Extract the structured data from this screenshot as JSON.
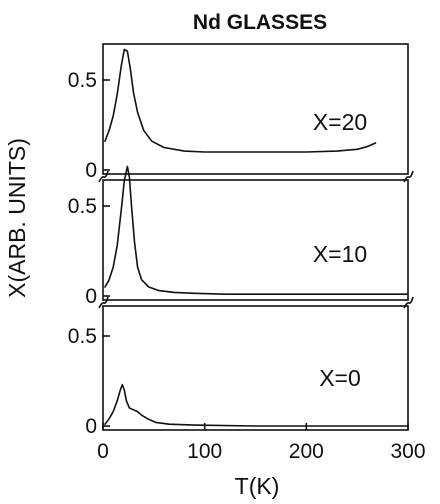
{
  "chart_data": {
    "type": "line",
    "title": "Nd GLASSES",
    "xlabel": "T(K)",
    "ylabel": "X(ARB. UNITS)",
    "xlim": [
      0,
      300
    ],
    "x_ticks": [
      "0",
      "100",
      "200",
      "300"
    ],
    "grid": false,
    "legend": "none",
    "line_color": "#111111",
    "panels": [
      {
        "label": "X=20",
        "ylim": [
          0,
          1.0
        ],
        "y_ticks": [
          "0",
          "0.5"
        ],
        "x": [
          2,
          6,
          10,
          14,
          18,
          21,
          24,
          27,
          30,
          34,
          40,
          48,
          60,
          80,
          100,
          150,
          200,
          230,
          250,
          260,
          268
        ],
        "y": [
          0.16,
          0.22,
          0.3,
          0.42,
          0.58,
          0.67,
          0.66,
          0.56,
          0.43,
          0.32,
          0.22,
          0.16,
          0.125,
          0.105,
          0.1,
          0.1,
          0.1,
          0.105,
          0.115,
          0.13,
          0.15
        ]
      },
      {
        "label": "X=10",
        "ylim": [
          0,
          1.0
        ],
        "y_ticks": [
          "0",
          "0.5"
        ],
        "x": [
          2,
          6,
          10,
          14,
          18,
          21,
          24,
          26,
          28,
          31,
          34,
          38,
          45,
          55,
          70,
          90,
          120,
          200,
          300
        ],
        "y": [
          0.05,
          0.09,
          0.16,
          0.28,
          0.48,
          0.64,
          0.72,
          0.66,
          0.5,
          0.3,
          0.16,
          0.09,
          0.05,
          0.03,
          0.02,
          0.015,
          0.01,
          0.01,
          0.01
        ]
      },
      {
        "label": "X=0",
        "ylim": [
          0,
          1.0
        ],
        "y_ticks": [
          "0",
          "0.5"
        ],
        "x": [
          2,
          6,
          10,
          14,
          17,
          19,
          21,
          23,
          26,
          30,
          34,
          38,
          44,
          52,
          65,
          90,
          150,
          220,
          300
        ],
        "y": [
          0.01,
          0.04,
          0.08,
          0.14,
          0.2,
          0.23,
          0.2,
          0.14,
          0.1,
          0.09,
          0.08,
          0.06,
          0.04,
          0.02,
          0.01,
          0.005,
          0.0,
          0.0,
          0.0
        ]
      }
    ]
  }
}
